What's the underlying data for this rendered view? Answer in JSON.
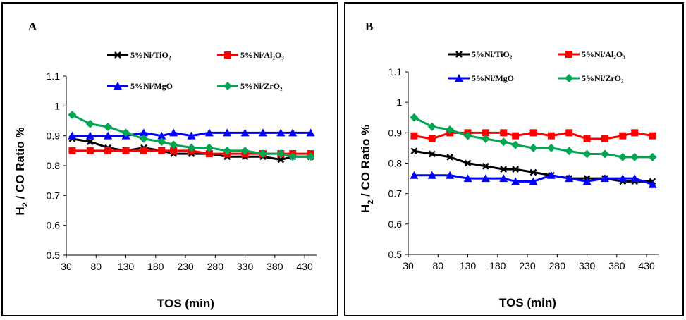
{
  "chart_data": [
    {
      "panel_label": "A",
      "type": "line",
      "xlabel": "TOS (min)",
      "ylabel_main": "H",
      "ylabel_sub": "2",
      "ylabel_rest": " / CO Ratio %",
      "ylim": [
        0.5,
        1.1
      ],
      "yticks": [
        "0.5",
        "0.6",
        "0.7",
        "0.8",
        "0.9",
        "1",
        "1.1"
      ],
      "xlim": [
        30,
        450
      ],
      "xticks": [
        "30",
        "80",
        "130",
        "180",
        "230",
        "280",
        "330",
        "380",
        "430"
      ],
      "x": [
        40,
        70,
        100,
        130,
        160,
        190,
        210,
        240,
        270,
        300,
        330,
        360,
        390,
        410,
        440
      ],
      "series": [
        {
          "name": "5%Ni/TiO₂",
          "color": "#000000",
          "marker": "x",
          "values": [
            0.89,
            0.88,
            0.86,
            0.85,
            0.86,
            0.85,
            0.84,
            0.84,
            0.84,
            0.83,
            0.83,
            0.83,
            0.82,
            0.83,
            0.83
          ]
        },
        {
          "name": "5%Ni/Al₂O₃",
          "color": "#ff0000",
          "marker": "square",
          "values": [
            0.85,
            0.85,
            0.85,
            0.85,
            0.85,
            0.85,
            0.85,
            0.85,
            0.84,
            0.84,
            0.84,
            0.84,
            0.84,
            0.84,
            0.84
          ]
        },
        {
          "name": "5%Ni/MgO",
          "color": "#0000ff",
          "marker": "triangle",
          "values": [
            0.9,
            0.9,
            0.9,
            0.9,
            0.91,
            0.9,
            0.91,
            0.9,
            0.91,
            0.91,
            0.91,
            0.91,
            0.91,
            0.91,
            0.91
          ]
        },
        {
          "name": "5%Ni/ZrO₂",
          "color": "#00a651",
          "marker": "diamond",
          "values": [
            0.97,
            0.94,
            0.93,
            0.91,
            0.89,
            0.88,
            0.87,
            0.86,
            0.86,
            0.85,
            0.85,
            0.84,
            0.84,
            0.83,
            0.83
          ]
        }
      ]
    },
    {
      "panel_label": "B",
      "type": "line",
      "xlabel": "TOS (min)",
      "ylabel_main": "H",
      "ylabel_sub": "2",
      "ylabel_rest": " / CO Ratio %",
      "ylim": [
        0.5,
        1.1
      ],
      "yticks": [
        "0.5",
        "0.6",
        "0.7",
        "0.8",
        "0.9",
        "1",
        "1.1"
      ],
      "xlim": [
        30,
        450
      ],
      "xticks": [
        "30",
        "80",
        "130",
        "180",
        "230",
        "280",
        "330",
        "380",
        "430"
      ],
      "x": [
        40,
        70,
        100,
        130,
        160,
        190,
        210,
        240,
        270,
        300,
        330,
        360,
        390,
        410,
        440
      ],
      "series": [
        {
          "name": "5%Ni/TiO₂",
          "color": "#000000",
          "marker": "x",
          "values": [
            0.84,
            0.83,
            0.82,
            0.8,
            0.79,
            0.78,
            0.78,
            0.77,
            0.76,
            0.75,
            0.75,
            0.75,
            0.74,
            0.74,
            0.74
          ]
        },
        {
          "name": "5%Ni/Al₂O₃",
          "color": "#ff0000",
          "marker": "square",
          "values": [
            0.89,
            0.88,
            0.9,
            0.9,
            0.9,
            0.9,
            0.89,
            0.9,
            0.89,
            0.9,
            0.88,
            0.88,
            0.89,
            0.9,
            0.89
          ]
        },
        {
          "name": "5%Ni/MgO",
          "color": "#0000ff",
          "marker": "triangle",
          "values": [
            0.76,
            0.76,
            0.76,
            0.75,
            0.75,
            0.75,
            0.74,
            0.74,
            0.76,
            0.75,
            0.74,
            0.75,
            0.75,
            0.75,
            0.73
          ]
        },
        {
          "name": "5%Ni/ZrO₂",
          "color": "#00a651",
          "marker": "diamond",
          "values": [
            0.95,
            0.92,
            0.91,
            0.89,
            0.88,
            0.87,
            0.86,
            0.85,
            0.85,
            0.84,
            0.83,
            0.83,
            0.82,
            0.82,
            0.82
          ]
        }
      ]
    }
  ]
}
